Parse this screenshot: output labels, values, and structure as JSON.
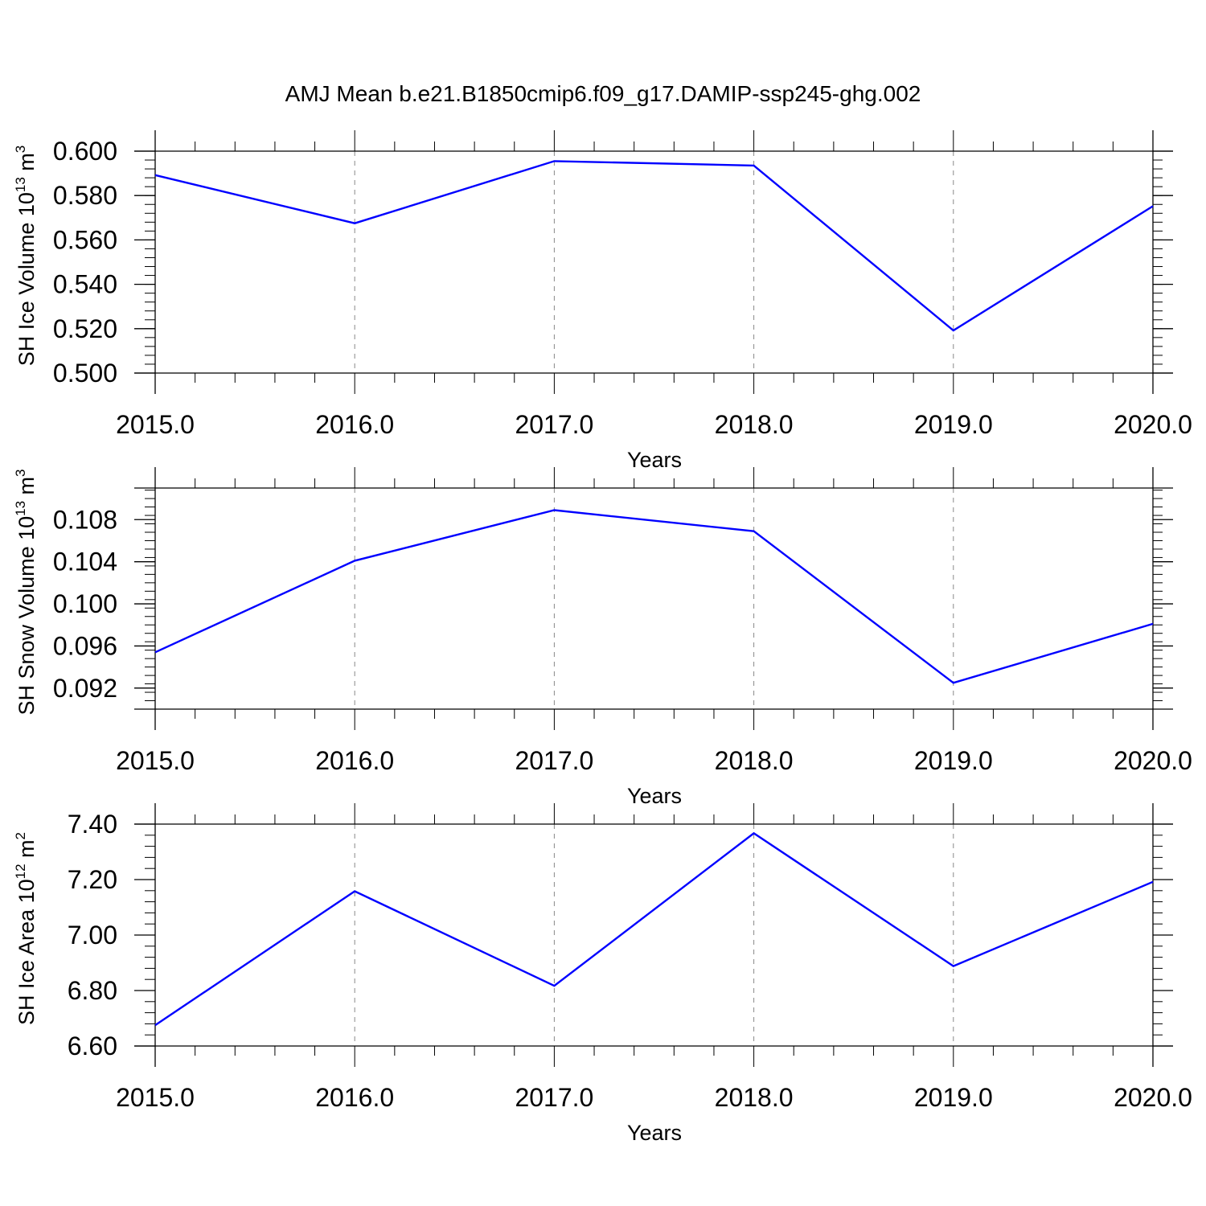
{
  "title": "AMJ Mean b.e21.B1850cmip6.f09_g17.DAMIP-ssp245-ghg.002",
  "colors": {
    "line": "#0000ff",
    "axis": "#000000",
    "grid": "#888888"
  },
  "chart_data": [
    {
      "type": "line",
      "ylabel_main": "SH Ice Volume 10",
      "ylabel_exp": "13",
      "ylabel_unit": "m",
      "ylabel_unit_exp": "3",
      "xlabel": "Years",
      "x": [
        2015,
        2016,
        2017,
        2018,
        2019,
        2020
      ],
      "x_tick_labels": [
        "2015.0",
        "2016.0",
        "2017.0",
        "2018.0",
        "2019.0",
        "2020.0"
      ],
      "series": [
        {
          "values": [
            0.5892,
            0.5675,
            0.5955,
            0.5935,
            0.5192,
            0.5752
          ]
        }
      ],
      "ylim": [
        0.5,
        0.6
      ],
      "xlim": [
        2015,
        2020.1
      ],
      "y_major_ticks": [
        0.5,
        0.52,
        0.54,
        0.56,
        0.58,
        0.6
      ],
      "y_tick_labels": [
        "0.500",
        "0.520",
        "0.540",
        "0.560",
        "0.580",
        "0.600"
      ],
      "grid": "vertical dashed at major x ticks"
    },
    {
      "type": "line",
      "ylabel_main": "SH Snow Volume 10",
      "ylabel_exp": "13",
      "ylabel_unit": "m",
      "ylabel_unit_exp": "3",
      "xlabel": "Years",
      "x": [
        2015,
        2016,
        2017,
        2018,
        2019,
        2020
      ],
      "x_tick_labels": [
        "2015.0",
        "2016.0",
        "2017.0",
        "2018.0",
        "2019.0",
        "2020.0"
      ],
      "series": [
        {
          "values": [
            0.0954,
            0.1041,
            0.1089,
            0.1069,
            0.0925,
            0.0981
          ]
        }
      ],
      "ylim": [
        0.09,
        0.111
      ],
      "xlim": [
        2015,
        2020.1
      ],
      "y_major_ticks": [
        0.092,
        0.096,
        0.1,
        0.104,
        0.108
      ],
      "y_tick_labels": [
        "0.092",
        "0.096",
        "0.100",
        "0.104",
        "0.108"
      ],
      "grid": "vertical dashed at major x ticks"
    },
    {
      "type": "line",
      "ylabel_main": "SH Ice Area 10",
      "ylabel_exp": "12",
      "ylabel_unit": "m",
      "ylabel_unit_exp": "2",
      "xlabel": "Years",
      "x": [
        2015,
        2016,
        2017,
        2018,
        2019,
        2020
      ],
      "x_tick_labels": [
        "2015.0",
        "2016.0",
        "2017.0",
        "2018.0",
        "2019.0",
        "2020.0"
      ],
      "series": [
        {
          "values": [
            6.675,
            7.158,
            6.817,
            7.367,
            6.888,
            7.192
          ]
        }
      ],
      "ylim": [
        6.6,
        7.4
      ],
      "xlim": [
        2015,
        2020.1
      ],
      "y_major_ticks": [
        6.6,
        6.8,
        7.0,
        7.2,
        7.4
      ],
      "y_tick_labels": [
        "6.60",
        "6.80",
        "7.00",
        "7.20",
        "7.40"
      ],
      "grid": "vertical dashed at major x ticks"
    }
  ]
}
